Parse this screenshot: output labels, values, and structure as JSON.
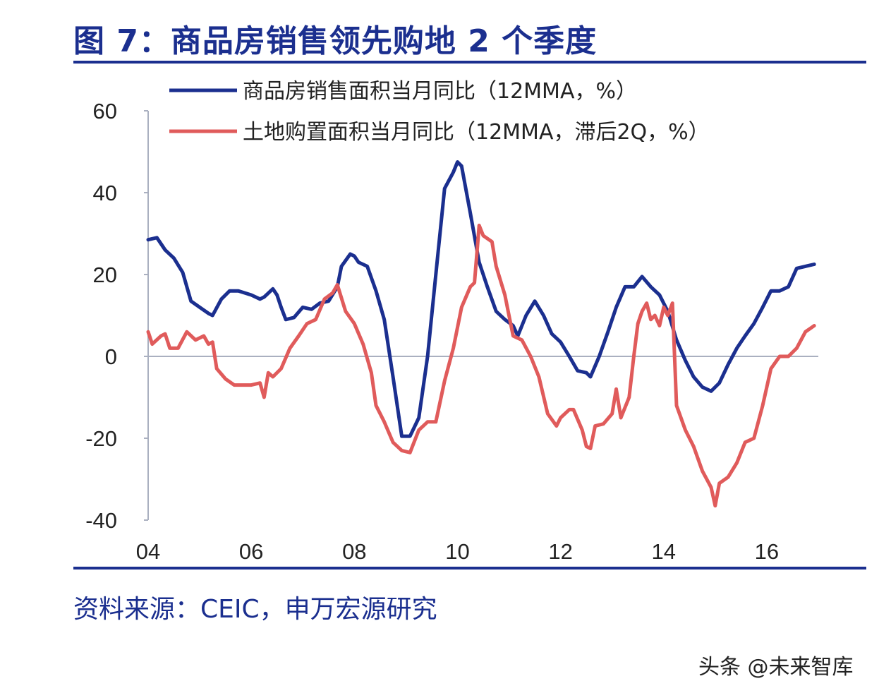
{
  "title": "图 7：商品房销售领先购地 2 个季度",
  "source": "资料来源：CEIC，申万宏源研究",
  "watermark": "头条 @未来智库",
  "colors": {
    "accent": "#1b2f8f",
    "series_blue": "#1b2f8f",
    "series_red": "#e05b5b",
    "axis": "#aab0c0"
  },
  "chart_data": {
    "type": "line",
    "ylim": [
      -40,
      60
    ],
    "yticks": [
      -40,
      -20,
      0,
      20,
      40,
      60
    ],
    "xlim": [
      2004,
      2017
    ],
    "xticks": [
      {
        "value": 2004,
        "label": "04"
      },
      {
        "value": 2006,
        "label": "06"
      },
      {
        "value": 2008,
        "label": "08"
      },
      {
        "value": 2010,
        "label": "10"
      },
      {
        "value": 2012,
        "label": "12"
      },
      {
        "value": 2014,
        "label": "14"
      },
      {
        "value": 2016,
        "label": "16"
      }
    ],
    "legend_position": "top",
    "series": [
      {
        "name": "商品房销售面积当月同比（12MMA，%）",
        "color": "#1b2f8f",
        "points": [
          [
            2004.0,
            28.5
          ],
          [
            2004.17,
            29
          ],
          [
            2004.33,
            26
          ],
          [
            2004.5,
            24
          ],
          [
            2004.67,
            20.5
          ],
          [
            2004.83,
            13.5
          ],
          [
            2005.0,
            12
          ],
          [
            2005.17,
            10.5
          ],
          [
            2005.25,
            10
          ],
          [
            2005.42,
            14
          ],
          [
            2005.58,
            16
          ],
          [
            2005.75,
            16
          ],
          [
            2006.0,
            15
          ],
          [
            2006.17,
            14
          ],
          [
            2006.25,
            14.5
          ],
          [
            2006.42,
            16.5
          ],
          [
            2006.5,
            15
          ],
          [
            2006.58,
            12
          ],
          [
            2006.67,
            9
          ],
          [
            2006.83,
            9.5
          ],
          [
            2007.0,
            12
          ],
          [
            2007.17,
            11.5
          ],
          [
            2007.33,
            13
          ],
          [
            2007.5,
            13.5
          ],
          [
            2007.67,
            17
          ],
          [
            2007.75,
            22
          ],
          [
            2007.92,
            25
          ],
          [
            2008.0,
            24.5
          ],
          [
            2008.08,
            23
          ],
          [
            2008.25,
            22
          ],
          [
            2008.42,
            16
          ],
          [
            2008.58,
            9
          ],
          [
            2008.75,
            -5
          ],
          [
            2008.92,
            -19.5
          ],
          [
            2009.08,
            -19.5
          ],
          [
            2009.25,
            -15
          ],
          [
            2009.42,
            0
          ],
          [
            2009.58,
            20
          ],
          [
            2009.75,
            41
          ],
          [
            2009.92,
            45
          ],
          [
            2010.0,
            47.5
          ],
          [
            2010.08,
            46.5
          ],
          [
            2010.25,
            35
          ],
          [
            2010.42,
            23
          ],
          [
            2010.58,
            17
          ],
          [
            2010.75,
            11
          ],
          [
            2010.92,
            9
          ],
          [
            2011.08,
            7.5
          ],
          [
            2011.17,
            5
          ],
          [
            2011.33,
            10
          ],
          [
            2011.5,
            13.5
          ],
          [
            2011.67,
            10
          ],
          [
            2011.83,
            5.5
          ],
          [
            2012.0,
            3.5
          ],
          [
            2012.17,
            0
          ],
          [
            2012.33,
            -3.5
          ],
          [
            2012.5,
            -4
          ],
          [
            2012.58,
            -5
          ],
          [
            2012.75,
            0
          ],
          [
            2012.92,
            6
          ],
          [
            2013.08,
            12
          ],
          [
            2013.25,
            17
          ],
          [
            2013.42,
            17
          ],
          [
            2013.58,
            19.5
          ],
          [
            2013.75,
            17
          ],
          [
            2013.92,
            15
          ],
          [
            2014.08,
            11
          ],
          [
            2014.25,
            4
          ],
          [
            2014.42,
            -1
          ],
          [
            2014.58,
            -5
          ],
          [
            2014.75,
            -7.5
          ],
          [
            2014.92,
            -8.5
          ],
          [
            2015.08,
            -6.5
          ],
          [
            2015.25,
            -2
          ],
          [
            2015.42,
            2
          ],
          [
            2015.58,
            5
          ],
          [
            2015.75,
            8
          ],
          [
            2015.92,
            12
          ],
          [
            2016.08,
            16
          ],
          [
            2016.25,
            16
          ],
          [
            2016.42,
            17
          ],
          [
            2016.58,
            21.5
          ],
          [
            2016.75,
            22
          ],
          [
            2016.92,
            22.5
          ]
        ]
      },
      {
        "name": "土地购置面积当月同比（12MMA，滞后2Q，%）",
        "color": "#e05b5b",
        "points": [
          [
            2004.0,
            6
          ],
          [
            2004.08,
            3
          ],
          [
            2004.25,
            5
          ],
          [
            2004.33,
            5.5
          ],
          [
            2004.42,
            2
          ],
          [
            2004.58,
            2
          ],
          [
            2004.75,
            6
          ],
          [
            2004.92,
            4
          ],
          [
            2005.08,
            5
          ],
          [
            2005.17,
            3
          ],
          [
            2005.25,
            3.5
          ],
          [
            2005.33,
            -3
          ],
          [
            2005.5,
            -5.5
          ],
          [
            2005.67,
            -7
          ],
          [
            2005.83,
            -7
          ],
          [
            2006.0,
            -7
          ],
          [
            2006.17,
            -6.5
          ],
          [
            2006.25,
            -10
          ],
          [
            2006.33,
            -4
          ],
          [
            2006.42,
            -5
          ],
          [
            2006.58,
            -3
          ],
          [
            2006.75,
            2
          ],
          [
            2006.92,
            5
          ],
          [
            2007.08,
            8
          ],
          [
            2007.25,
            9
          ],
          [
            2007.42,
            14
          ],
          [
            2007.58,
            15.5
          ],
          [
            2007.67,
            17.5
          ],
          [
            2007.83,
            11
          ],
          [
            2008.0,
            8
          ],
          [
            2008.17,
            3
          ],
          [
            2008.33,
            -4
          ],
          [
            2008.42,
            -12
          ],
          [
            2008.58,
            -16
          ],
          [
            2008.75,
            -21
          ],
          [
            2008.92,
            -23
          ],
          [
            2009.08,
            -23.5
          ],
          [
            2009.25,
            -18
          ],
          [
            2009.42,
            -16
          ],
          [
            2009.58,
            -16
          ],
          [
            2009.75,
            -6
          ],
          [
            2009.92,
            2
          ],
          [
            2010.08,
            12
          ],
          [
            2010.25,
            17
          ],
          [
            2010.33,
            18
          ],
          [
            2010.42,
            32
          ],
          [
            2010.5,
            29.5
          ],
          [
            2010.67,
            28
          ],
          [
            2010.75,
            22
          ],
          [
            2010.92,
            15
          ],
          [
            2011.0,
            10
          ],
          [
            2011.08,
            5
          ],
          [
            2011.25,
            4
          ],
          [
            2011.42,
            0
          ],
          [
            2011.58,
            -5
          ],
          [
            2011.75,
            -14
          ],
          [
            2011.92,
            -17
          ],
          [
            2012.0,
            -15
          ],
          [
            2012.17,
            -13
          ],
          [
            2012.25,
            -13
          ],
          [
            2012.42,
            -18
          ],
          [
            2012.5,
            -22
          ],
          [
            2012.58,
            -22.5
          ],
          [
            2012.67,
            -17
          ],
          [
            2012.83,
            -16.5
          ],
          [
            2013.0,
            -14
          ],
          [
            2013.08,
            -8
          ],
          [
            2013.17,
            -15
          ],
          [
            2013.33,
            -10
          ],
          [
            2013.42,
            0
          ],
          [
            2013.5,
            8
          ],
          [
            2013.58,
            11
          ],
          [
            2013.67,
            13
          ],
          [
            2013.75,
            9
          ],
          [
            2013.83,
            10
          ],
          [
            2013.92,
            7.5
          ],
          [
            2014.0,
            12
          ],
          [
            2014.08,
            10
          ],
          [
            2014.17,
            13
          ],
          [
            2014.25,
            -12
          ],
          [
            2014.42,
            -18
          ],
          [
            2014.58,
            -22
          ],
          [
            2014.75,
            -28
          ],
          [
            2014.92,
            -32
          ],
          [
            2015.0,
            -36.5
          ],
          [
            2015.08,
            -31
          ],
          [
            2015.25,
            -29.5
          ],
          [
            2015.42,
            -26
          ],
          [
            2015.58,
            -21
          ],
          [
            2015.75,
            -20
          ],
          [
            2015.92,
            -12
          ],
          [
            2016.08,
            -3
          ],
          [
            2016.25,
            0
          ],
          [
            2016.42,
            0
          ],
          [
            2016.58,
            2
          ],
          [
            2016.75,
            6
          ],
          [
            2016.92,
            7.5
          ]
        ]
      }
    ]
  }
}
